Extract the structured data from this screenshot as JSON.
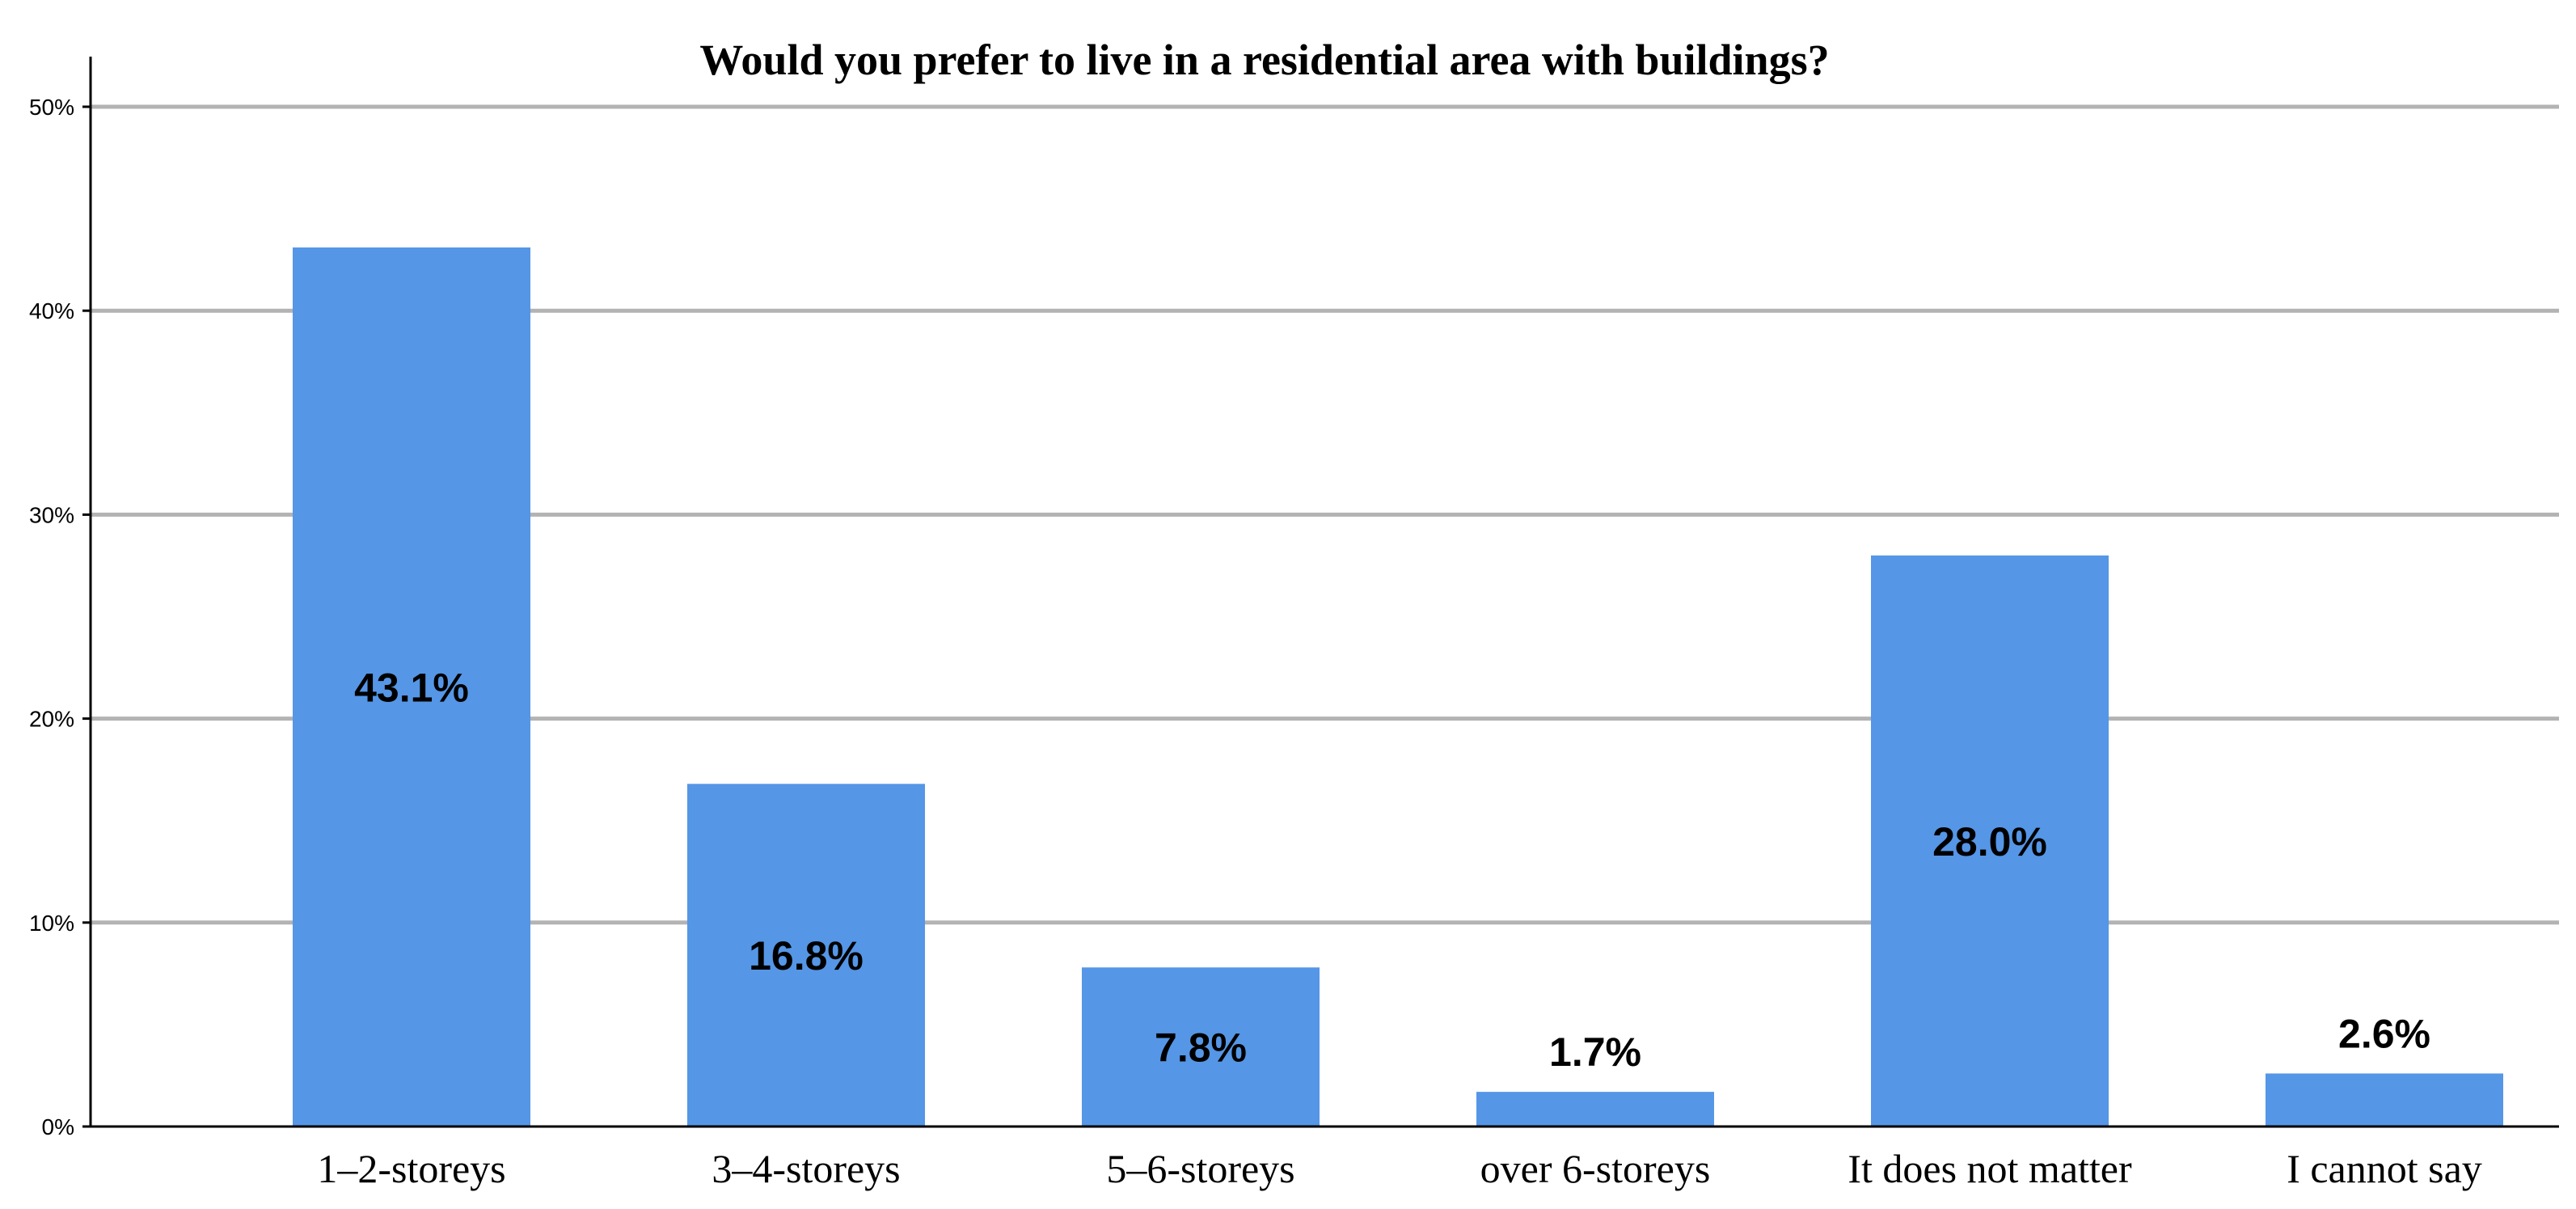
{
  "chart_data": {
    "type": "bar",
    "title": "Would you prefer to live in a residential area with buildings?",
    "xlabel": "",
    "ylabel": "",
    "categories": [
      "1–2-storeys",
      "3–4-storeys",
      "5–6-storeys",
      "over 6-storeys",
      "It does not matter",
      "I cannot say"
    ],
    "values": [
      43.1,
      16.8,
      7.8,
      1.7,
      28.0,
      2.6
    ],
    "data_labels": [
      "43.1%",
      "16.8%",
      "7.8%",
      "1.7%",
      "28.0%",
      "2.6%"
    ],
    "ylim": [
      0,
      50
    ],
    "yticks": [
      0,
      10,
      20,
      30,
      40,
      50
    ],
    "ytick_labels": [
      "0%",
      "10%",
      "20%",
      "30%",
      "40%",
      "50%"
    ],
    "grid": true,
    "legend": "none",
    "colors": {
      "bar": "#5596e6",
      "grid": "#b3b3b3",
      "axis": "#000000"
    }
  }
}
